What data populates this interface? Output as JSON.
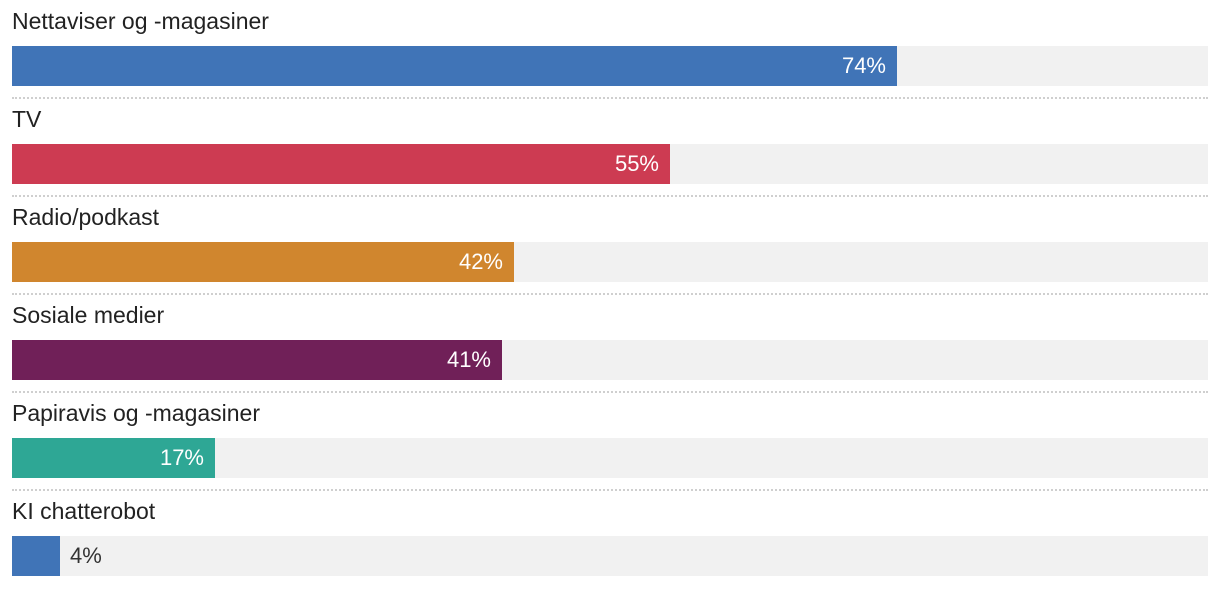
{
  "chart_data": {
    "type": "bar",
    "orientation": "horizontal",
    "xlim": [
      0,
      100
    ],
    "unit": "%",
    "grid": false,
    "categories": [
      "Nettaviser og -magasiner",
      "TV",
      "Radio/podkast",
      "Sosiale medier",
      "Papiravis og -magasiner",
      "KI chatterobot"
    ],
    "values": [
      74,
      55,
      42,
      41,
      17,
      4
    ],
    "value_labels": [
      "74%",
      "55%",
      "42%",
      "41%",
      "17%",
      "4%"
    ],
    "colors": [
      "#4074b7",
      "#cd3b52",
      "#d0862e",
      "#702058",
      "#2ea795",
      "#4074b7"
    ],
    "track_color": "#f1f1f1"
  }
}
